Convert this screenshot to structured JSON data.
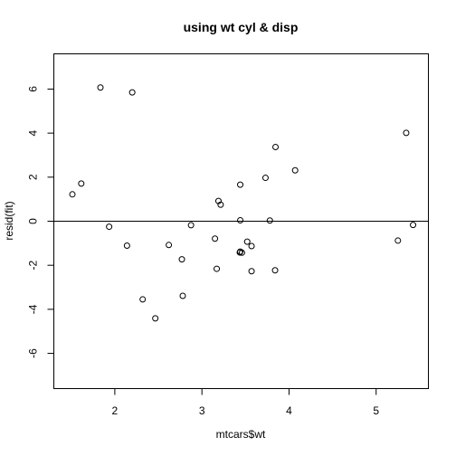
{
  "chart_data": {
    "type": "scatter",
    "title": "using wt cyl & disp",
    "xlabel": "mtcars$wt",
    "ylabel": "resid(fit)",
    "xlim": [
      1.3,
      5.6
    ],
    "ylim": [
      -7.6,
      7.6
    ],
    "xticks": [
      2,
      3,
      4,
      5
    ],
    "yticks": [
      -6,
      -4,
      -2,
      0,
      2,
      4,
      6
    ],
    "hline": 0,
    "grid": false,
    "points": [
      {
        "x": 1.513,
        "y": 1.22
      },
      {
        "x": 1.615,
        "y": 1.71
      },
      {
        "x": 1.835,
        "y": 6.07
      },
      {
        "x": 1.935,
        "y": -0.25
      },
      {
        "x": 2.14,
        "y": -1.11
      },
      {
        "x": 2.2,
        "y": 5.85
      },
      {
        "x": 2.32,
        "y": -3.55
      },
      {
        "x": 2.465,
        "y": -4.41
      },
      {
        "x": 2.62,
        "y": -1.08
      },
      {
        "x": 2.77,
        "y": -1.73
      },
      {
        "x": 2.78,
        "y": -3.39
      },
      {
        "x": 2.875,
        "y": -0.18
      },
      {
        "x": 3.15,
        "y": -0.79
      },
      {
        "x": 3.17,
        "y": -2.16
      },
      {
        "x": 3.19,
        "y": 0.92
      },
      {
        "x": 3.215,
        "y": 0.75
      },
      {
        "x": 3.435,
        "y": -1.42
      },
      {
        "x": 3.44,
        "y": 1.66
      },
      {
        "x": 3.44,
        "y": 0.04
      },
      {
        "x": 3.44,
        "y": -1.38
      },
      {
        "x": 3.46,
        "y": -1.43
      },
      {
        "x": 3.52,
        "y": -0.93
      },
      {
        "x": 3.57,
        "y": -2.27
      },
      {
        "x": 3.57,
        "y": -1.13
      },
      {
        "x": 3.73,
        "y": 1.97
      },
      {
        "x": 3.78,
        "y": 0.03
      },
      {
        "x": 3.84,
        "y": -2.23
      },
      {
        "x": 3.845,
        "y": 3.37
      },
      {
        "x": 4.07,
        "y": 2.31
      },
      {
        "x": 5.25,
        "y": -0.88
      },
      {
        "x": 5.345,
        "y": 4.01
      },
      {
        "x": 5.424,
        "y": -0.17
      }
    ]
  }
}
